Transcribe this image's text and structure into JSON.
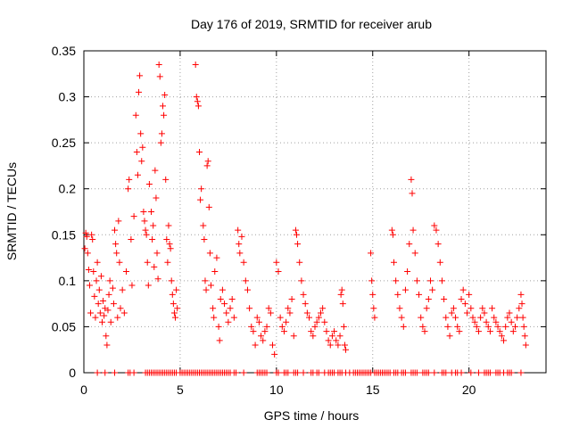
{
  "colors": {
    "series": "#ff0000",
    "grid": "#a0a0a0",
    "axis": "#000000",
    "background": "#ffffff"
  },
  "chart_data": {
    "type": "scatter",
    "title": "Day 176 of 2019, SRMTID for receiver arub",
    "xlabel": "GPS time / hours",
    "ylabel": "SRMTID / TECUs",
    "xlim": [
      0,
      24
    ],
    "ylim": [
      0,
      0.35
    ],
    "xticks": [
      0,
      5,
      10,
      15,
      20
    ],
    "xtick_labels": [
      "0",
      "5",
      "10",
      "15",
      "20"
    ],
    "yticks": [
      0,
      0.05,
      0.1,
      0.15,
      0.2,
      0.25,
      0.3,
      0.35
    ],
    "ytick_labels": [
      "0",
      "0.05",
      "0.1",
      "0.15",
      "0.2",
      "0.25",
      "0.3",
      "0.35"
    ],
    "grid": true,
    "marker": "plus",
    "series": [
      {
        "name": "SRMTID",
        "points": [
          [
            0.05,
            0.135
          ],
          [
            0.1,
            0.152
          ],
          [
            0.15,
            0.148
          ],
          [
            0.2,
            0.13
          ],
          [
            0.25,
            0.112
          ],
          [
            0.3,
            0.095
          ],
          [
            0.35,
            0.065
          ],
          [
            0.4,
            0.15
          ],
          [
            0.45,
            0.145
          ],
          [
            0.5,
            0.11
          ],
          [
            0.55,
            0.083
          ],
          [
            0.6,
            0.06
          ],
          [
            0.65,
            0.1
          ],
          [
            0.7,
            0.12
          ],
          [
            0.75,
            0.075
          ],
          [
            0.8,
            0.09
          ],
          [
            0.85,
            0.065
          ],
          [
            0.9,
            0.105
          ],
          [
            0.95,
            0.055
          ],
          [
            1.0,
            0.078
          ],
          [
            1.05,
            0.062
          ],
          [
            1.1,
            0.07
          ],
          [
            1.15,
            0.04
          ],
          [
            1.2,
            0.03
          ],
          [
            1.25,
            0.068
          ],
          [
            1.3,
            0.085
          ],
          [
            1.35,
            0.1
          ],
          [
            1.4,
            0.055
          ],
          [
            1.5,
            0.092
          ],
          [
            1.55,
            0.075
          ],
          [
            1.6,
            0.155
          ],
          [
            1.65,
            0.14
          ],
          [
            1.7,
            0.13
          ],
          [
            1.75,
            0.06
          ],
          [
            1.8,
            0.165
          ],
          [
            1.85,
            0.12
          ],
          [
            1.9,
            0.07
          ],
          [
            2.0,
            0.09
          ],
          [
            2.1,
            0.065
          ],
          [
            2.2,
            0.11
          ],
          [
            2.3,
            0.2
          ],
          [
            2.35,
            0.21
          ],
          [
            2.45,
            0.145
          ],
          [
            2.5,
            0.095
          ],
          [
            2.6,
            0.17
          ],
          [
            2.7,
            0.28
          ],
          [
            2.75,
            0.24
          ],
          [
            2.8,
            0.215
          ],
          [
            2.85,
            0.305
          ],
          [
            2.9,
            0.323
          ],
          [
            2.95,
            0.26
          ],
          [
            3.0,
            0.23
          ],
          [
            3.05,
            0.245
          ],
          [
            3.1,
            0.175
          ],
          [
            3.15,
            0.165
          ],
          [
            3.2,
            0.155
          ],
          [
            3.25,
            0.15
          ],
          [
            3.3,
            0.12
          ],
          [
            3.35,
            0.095
          ],
          [
            3.4,
            0.205
          ],
          [
            3.5,
            0.175
          ],
          [
            3.55,
            0.145
          ],
          [
            3.6,
            0.16
          ],
          [
            3.65,
            0.115
          ],
          [
            3.7,
            0.22
          ],
          [
            3.75,
            0.19
          ],
          [
            3.8,
            0.13
          ],
          [
            3.85,
            0.102
          ],
          [
            3.9,
            0.335
          ],
          [
            3.95,
            0.322
          ],
          [
            4.0,
            0.25
          ],
          [
            4.05,
            0.26
          ],
          [
            4.1,
            0.29
          ],
          [
            4.15,
            0.28
          ],
          [
            4.2,
            0.302
          ],
          [
            4.25,
            0.21
          ],
          [
            4.3,
            0.145
          ],
          [
            4.35,
            0.12
          ],
          [
            4.4,
            0.16
          ],
          [
            4.45,
            0.14
          ],
          [
            4.5,
            0.135
          ],
          [
            4.55,
            0.1
          ],
          [
            4.6,
            0.085
          ],
          [
            4.65,
            0.075
          ],
          [
            4.7,
            0.065
          ],
          [
            4.75,
            0.06
          ],
          [
            4.8,
            0.09
          ],
          [
            4.85,
            0.07
          ],
          [
            5.8,
            0.335
          ],
          [
            5.85,
            0.3
          ],
          [
            5.9,
            0.295
          ],
          [
            5.95,
            0.29
          ],
          [
            6.0,
            0.24
          ],
          [
            6.05,
            0.188
          ],
          [
            6.1,
            0.2
          ],
          [
            6.2,
            0.16
          ],
          [
            6.25,
            0.145
          ],
          [
            6.3,
            0.1
          ],
          [
            6.35,
            0.09
          ],
          [
            6.4,
            0.225
          ],
          [
            6.45,
            0.23
          ],
          [
            6.5,
            0.18
          ],
          [
            6.55,
            0.13
          ],
          [
            6.6,
            0.095
          ],
          [
            6.7,
            0.07
          ],
          [
            6.75,
            0.06
          ],
          [
            6.8,
            0.11
          ],
          [
            6.9,
            0.125
          ],
          [
            7.0,
            0.05
          ],
          [
            7.05,
            0.035
          ],
          [
            7.1,
            0.08
          ],
          [
            7.2,
            0.09
          ],
          [
            7.3,
            0.075
          ],
          [
            7.4,
            0.065
          ],
          [
            7.5,
            0.055
          ],
          [
            7.6,
            0.07
          ],
          [
            7.7,
            0.08
          ],
          [
            7.8,
            0.06
          ],
          [
            8.0,
            0.155
          ],
          [
            8.05,
            0.14
          ],
          [
            8.1,
            0.13
          ],
          [
            8.2,
            0.148
          ],
          [
            8.3,
            0.12
          ],
          [
            8.4,
            0.1
          ],
          [
            8.5,
            0.09
          ],
          [
            8.6,
            0.07
          ],
          [
            8.7,
            0.05
          ],
          [
            8.8,
            0.045
          ],
          [
            8.9,
            0.03
          ],
          [
            9.0,
            0.06
          ],
          [
            9.1,
            0.055
          ],
          [
            9.2,
            0.04
          ],
          [
            9.3,
            0.035
          ],
          [
            9.4,
            0.045
          ],
          [
            9.5,
            0.05
          ],
          [
            9.6,
            0.07
          ],
          [
            9.7,
            0.065
          ],
          [
            9.8,
            0.03
          ],
          [
            9.9,
            0.02
          ],
          [
            10.0,
            0.12
          ],
          [
            10.1,
            0.11
          ],
          [
            10.2,
            0.06
          ],
          [
            10.3,
            0.05
          ],
          [
            10.4,
            0.045
          ],
          [
            10.5,
            0.055
          ],
          [
            10.6,
            0.07
          ],
          [
            10.7,
            0.065
          ],
          [
            10.8,
            0.08
          ],
          [
            10.9,
            0.04
          ],
          [
            11.0,
            0.155
          ],
          [
            11.05,
            0.15
          ],
          [
            11.1,
            0.14
          ],
          [
            11.2,
            0.12
          ],
          [
            11.3,
            0.1
          ],
          [
            11.4,
            0.085
          ],
          [
            11.5,
            0.075
          ],
          [
            11.6,
            0.065
          ],
          [
            11.7,
            0.06
          ],
          [
            11.8,
            0.045
          ],
          [
            11.9,
            0.04
          ],
          [
            12.0,
            0.05
          ],
          [
            12.1,
            0.055
          ],
          [
            12.2,
            0.06
          ],
          [
            12.3,
            0.065
          ],
          [
            12.4,
            0.07
          ],
          [
            12.5,
            0.055
          ],
          [
            12.6,
            0.045
          ],
          [
            12.7,
            0.035
          ],
          [
            12.8,
            0.03
          ],
          [
            12.9,
            0.04
          ],
          [
            13.0,
            0.045
          ],
          [
            13.1,
            0.035
          ],
          [
            13.2,
            0.03
          ],
          [
            13.3,
            0.04
          ],
          [
            13.35,
            0.085
          ],
          [
            13.4,
            0.09
          ],
          [
            13.45,
            0.075
          ],
          [
            13.5,
            0.05
          ],
          [
            13.55,
            0.03
          ],
          [
            13.6,
            0.025
          ],
          [
            14.9,
            0.13
          ],
          [
            14.95,
            0.1
          ],
          [
            15.0,
            0.085
          ],
          [
            15.05,
            0.07
          ],
          [
            15.1,
            0.06
          ],
          [
            16.0,
            0.155
          ],
          [
            16.05,
            0.15
          ],
          [
            16.1,
            0.12
          ],
          [
            16.2,
            0.1
          ],
          [
            16.3,
            0.085
          ],
          [
            16.4,
            0.07
          ],
          [
            16.5,
            0.06
          ],
          [
            16.6,
            0.05
          ],
          [
            16.7,
            0.09
          ],
          [
            16.8,
            0.11
          ],
          [
            16.9,
            0.14
          ],
          [
            17.0,
            0.21
          ],
          [
            17.05,
            0.195
          ],
          [
            17.1,
            0.155
          ],
          [
            17.2,
            0.13
          ],
          [
            17.3,
            0.1
          ],
          [
            17.4,
            0.085
          ],
          [
            17.5,
            0.06
          ],
          [
            17.6,
            0.05
          ],
          [
            17.7,
            0.045
          ],
          [
            17.8,
            0.07
          ],
          [
            17.9,
            0.08
          ],
          [
            18.0,
            0.1
          ],
          [
            18.1,
            0.09
          ],
          [
            18.2,
            0.16
          ],
          [
            18.3,
            0.155
          ],
          [
            18.4,
            0.14
          ],
          [
            18.5,
            0.12
          ],
          [
            18.6,
            0.1
          ],
          [
            18.7,
            0.08
          ],
          [
            18.8,
            0.06
          ],
          [
            18.9,
            0.05
          ],
          [
            19.0,
            0.04
          ],
          [
            19.1,
            0.065
          ],
          [
            19.2,
            0.07
          ],
          [
            19.3,
            0.06
          ],
          [
            19.4,
            0.05
          ],
          [
            19.5,
            0.045
          ],
          [
            19.6,
            0.08
          ],
          [
            19.7,
            0.09
          ],
          [
            19.8,
            0.075
          ],
          [
            19.9,
            0.065
          ],
          [
            20.0,
            0.085
          ],
          [
            20.1,
            0.07
          ],
          [
            20.2,
            0.06
          ],
          [
            20.3,
            0.055
          ],
          [
            20.4,
            0.05
          ],
          [
            20.5,
            0.045
          ],
          [
            20.6,
            0.06
          ],
          [
            20.7,
            0.07
          ],
          [
            20.8,
            0.065
          ],
          [
            20.9,
            0.055
          ],
          [
            21.0,
            0.05
          ],
          [
            21.1,
            0.045
          ],
          [
            21.2,
            0.07
          ],
          [
            21.3,
            0.06
          ],
          [
            21.4,
            0.055
          ],
          [
            21.5,
            0.05
          ],
          [
            21.6,
            0.045
          ],
          [
            21.7,
            0.04
          ],
          [
            21.8,
            0.035
          ],
          [
            21.9,
            0.05
          ],
          [
            22.0,
            0.06
          ],
          [
            22.1,
            0.065
          ],
          [
            22.2,
            0.055
          ],
          [
            22.3,
            0.045
          ],
          [
            22.4,
            0.05
          ],
          [
            22.5,
            0.06
          ],
          [
            22.6,
            0.07
          ],
          [
            22.7,
            0.085
          ],
          [
            22.75,
            0.075
          ],
          [
            22.8,
            0.06
          ],
          [
            22.85,
            0.05
          ],
          [
            22.9,
            0.04
          ],
          [
            22.95,
            0.03
          ]
        ],
        "zero_points_x": [
          0.7,
          1.1,
          1.6,
          2.3,
          2.4,
          2.6,
          3.2,
          3.3,
          3.4,
          3.5,
          3.6,
          3.7,
          3.8,
          3.9,
          4.0,
          4.1,
          4.2,
          4.3,
          4.4,
          4.5,
          4.6,
          4.7,
          4.8,
          5.0,
          5.1,
          5.2,
          5.3,
          5.4,
          5.5,
          5.6,
          5.7,
          5.8,
          5.9,
          6.0,
          6.1,
          6.2,
          6.3,
          6.4,
          6.5,
          6.6,
          6.7,
          6.8,
          6.9,
          7.0,
          7.1,
          7.2,
          7.3,
          7.4,
          7.5,
          7.6,
          7.8,
          7.9,
          8.3,
          9.0,
          9.1,
          9.2,
          9.3,
          9.4,
          9.5,
          10.0,
          10.1,
          10.4,
          10.5,
          10.6,
          10.9,
          11.0,
          11.1,
          11.4,
          11.8,
          11.9,
          12.1,
          12.2,
          12.5,
          12.7,
          12.8,
          12.9,
          13.0,
          13.2,
          13.3,
          13.4,
          13.6,
          13.8,
          14.0,
          14.1,
          14.2,
          14.3,
          14.4,
          14.5,
          14.6,
          14.7,
          14.8,
          14.9,
          15.1,
          15.2,
          15.3,
          15.4,
          15.5,
          15.6,
          15.7,
          15.8,
          15.9,
          16.1,
          16.2,
          16.3,
          16.5,
          16.6,
          16.7,
          17.0,
          17.1,
          17.2,
          17.3,
          17.6,
          17.7,
          17.8,
          17.9,
          18.2,
          18.6,
          18.7,
          18.8,
          19.1,
          19.3,
          19.4,
          19.6,
          20.1,
          20.5,
          20.8,
          20.9,
          21.0,
          21.1,
          21.4,
          21.5,
          21.6,
          21.8,
          22.0,
          22.1,
          22.2,
          22.7
        ]
      }
    ]
  }
}
